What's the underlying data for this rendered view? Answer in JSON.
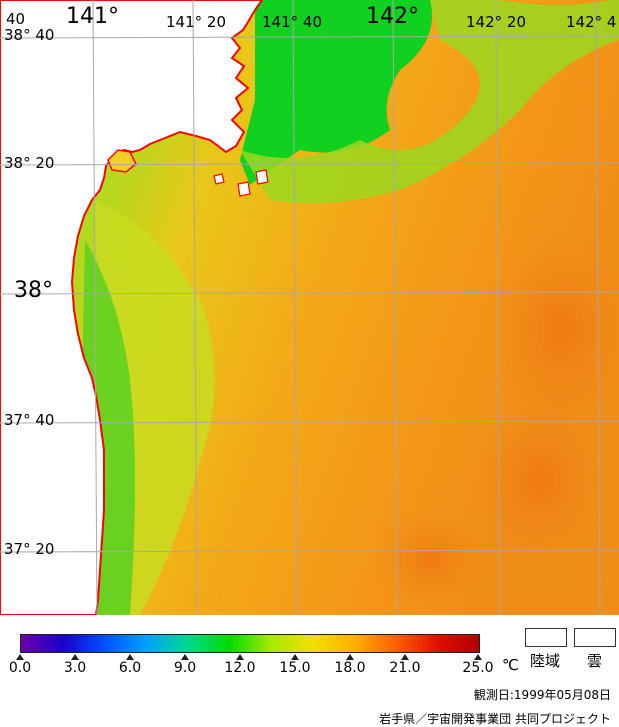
{
  "map": {
    "longitude_labels": [
      {
        "text": "40",
        "size": "small"
      },
      {
        "text": "141°",
        "size": "big"
      },
      {
        "text": "141° 20",
        "size": "small"
      },
      {
        "text": "141° 40",
        "size": "small"
      },
      {
        "text": "142°",
        "size": "big"
      },
      {
        "text": "142° 20",
        "size": "small"
      },
      {
        "text": "142° 4",
        "size": "small"
      }
    ],
    "latitude_labels": [
      {
        "text": "38° 40",
        "size": "small"
      },
      {
        "text": "38° 20",
        "size": "small"
      },
      {
        "text": "38°",
        "size": "big"
      },
      {
        "text": "37° 40",
        "size": "small"
      },
      {
        "text": "37° 20",
        "size": "small"
      }
    ],
    "coastline_color": "#ff0000",
    "land_color": "#ffffff",
    "grid_color": "#a8a8a8"
  },
  "colorbar": {
    "tick_labels": [
      "0.0",
      "3.0",
      "6.0",
      "9.0",
      "12.0",
      "15.0",
      "18.0",
      "21.0",
      "25.0"
    ],
    "unit": "℃",
    "color_stops": [
      "#6a00b0",
      "#1a00c8",
      "#0050ff",
      "#00a0ff",
      "#00d890",
      "#00dc00",
      "#a8e800",
      "#f0e000",
      "#ffb000",
      "#ff6000",
      "#e01000",
      "#b00000"
    ]
  },
  "legend": {
    "land_label": "陸域",
    "cloud_label": "雲"
  },
  "footer": {
    "observation_date": "観測日:1999年05月08日",
    "credit": "岩手県／宇宙開発事業団 共同プロジェクト"
  }
}
